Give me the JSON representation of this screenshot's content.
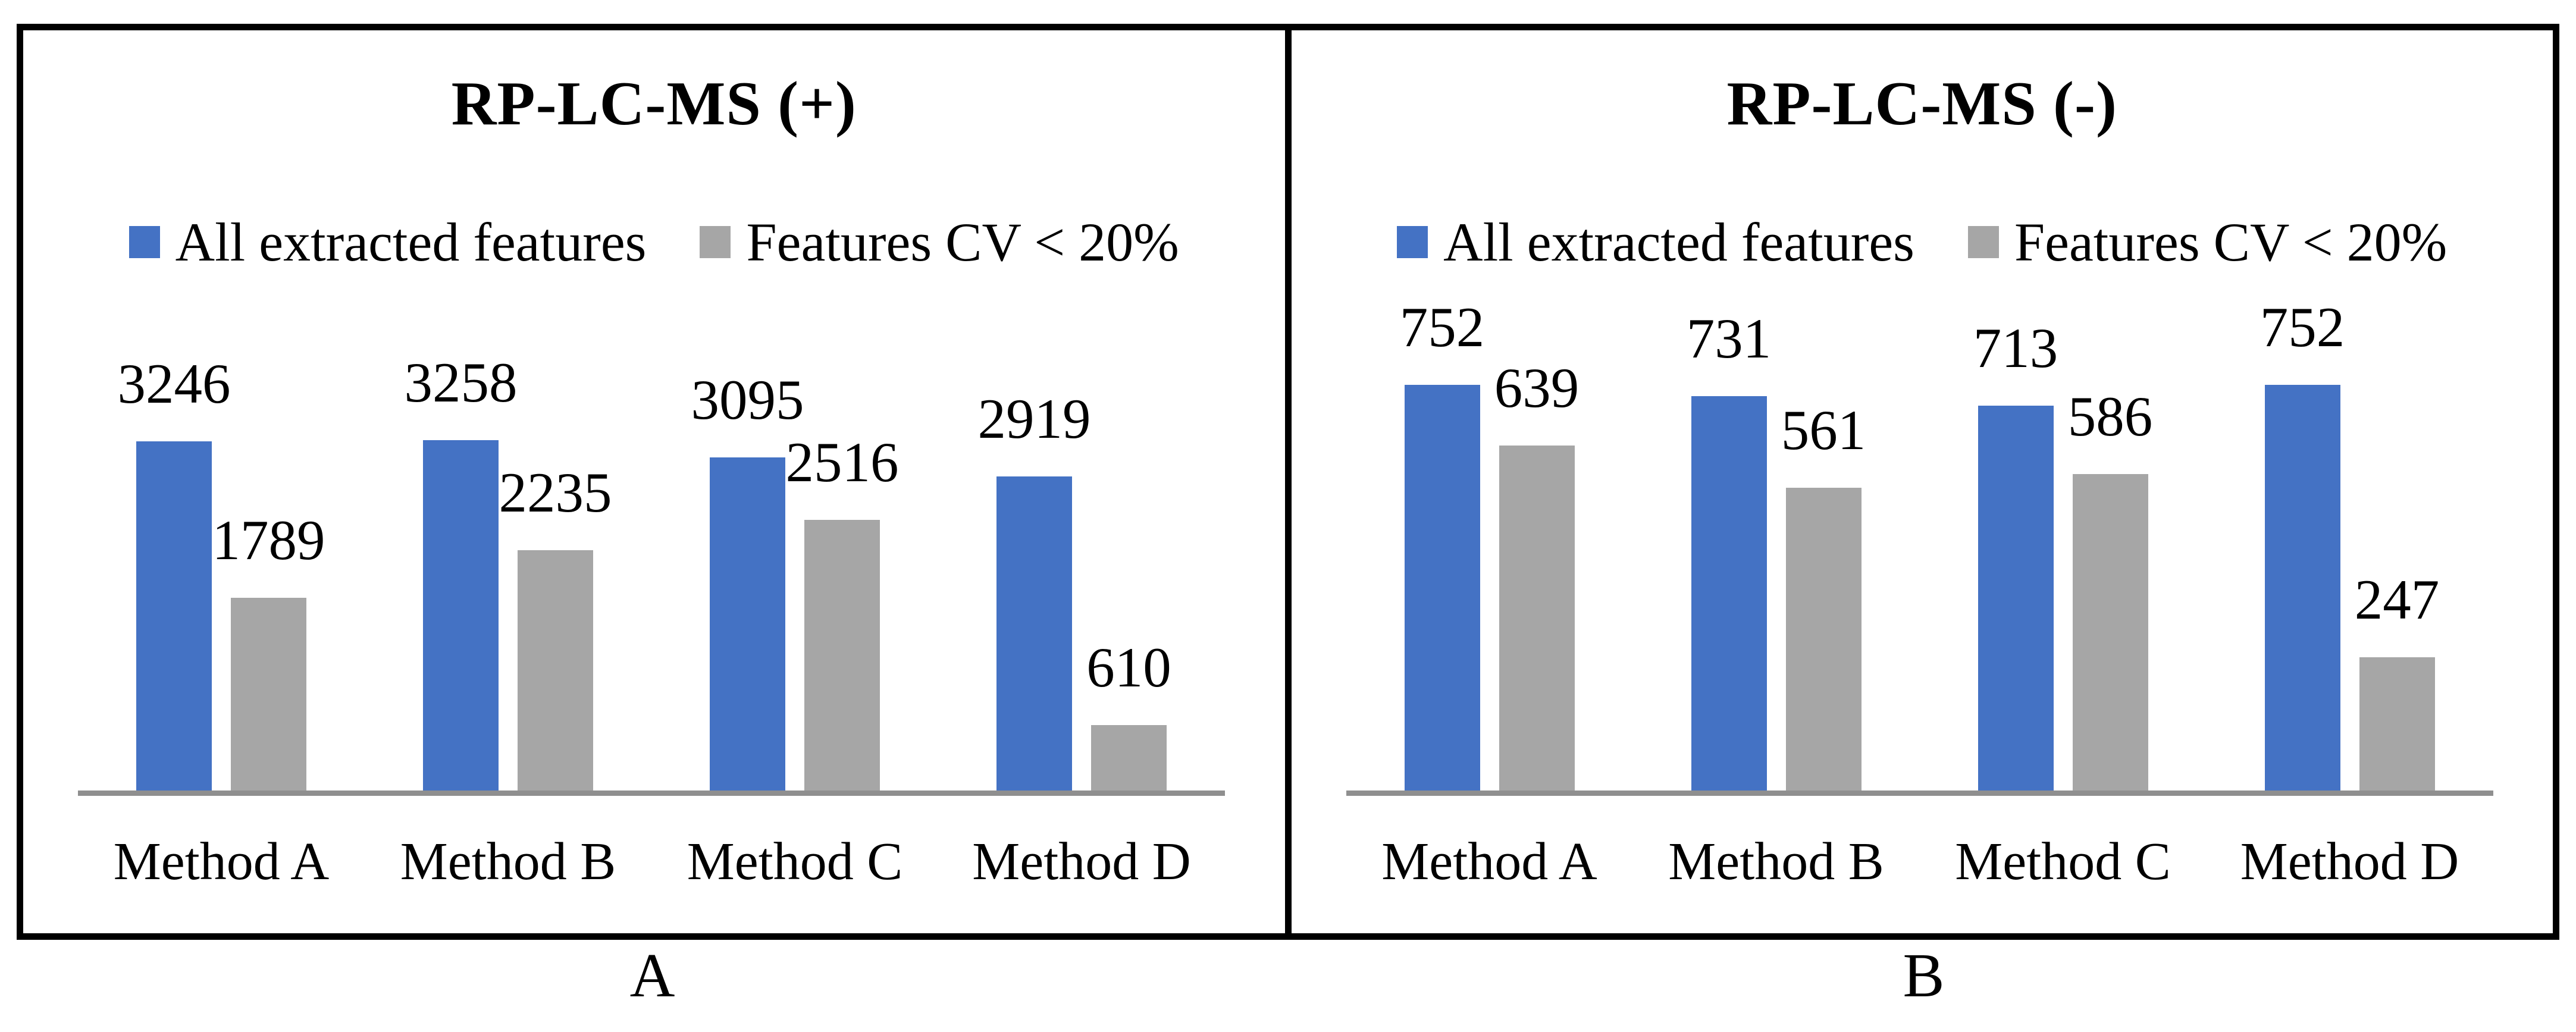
{
  "figure": {
    "captions": [
      "A",
      "B"
    ],
    "border_color": "#000000",
    "axis_color": "#8F8F8F"
  },
  "chart_data": [
    {
      "type": "bar",
      "title": "RP-LC-MS (+)",
      "categories": [
        "Method A",
        "Method B",
        "Method C",
        "Method D"
      ],
      "series": [
        {
          "name": "All extracted features",
          "color": "#4472C4",
          "values": [
            3246,
            3258,
            3095,
            2919
          ]
        },
        {
          "name": "Features CV < 20%",
          "color": "#A6A6A6",
          "values": [
            1789,
            2235,
            2516,
            610
          ]
        }
      ],
      "legend_position": "top",
      "grid": false,
      "y_axis_visible": false,
      "data_labels": true,
      "ylim": [
        0,
        3500
      ],
      "panel_label": "A"
    },
    {
      "type": "bar",
      "title": "RP-LC-MS (-)",
      "categories": [
        "Method A",
        "Method B",
        "Method C",
        "Method D"
      ],
      "series": [
        {
          "name": "All extracted features",
          "color": "#4472C4",
          "values": [
            752,
            731,
            713,
            752
          ]
        },
        {
          "name": "Features CV < 20%",
          "color": "#A6A6A6",
          "values": [
            639,
            561,
            586,
            247
          ]
        }
      ],
      "legend_position": "top",
      "grid": false,
      "y_axis_visible": false,
      "data_labels": true,
      "ylim": [
        0,
        800
      ],
      "panel_label": "B"
    }
  ]
}
